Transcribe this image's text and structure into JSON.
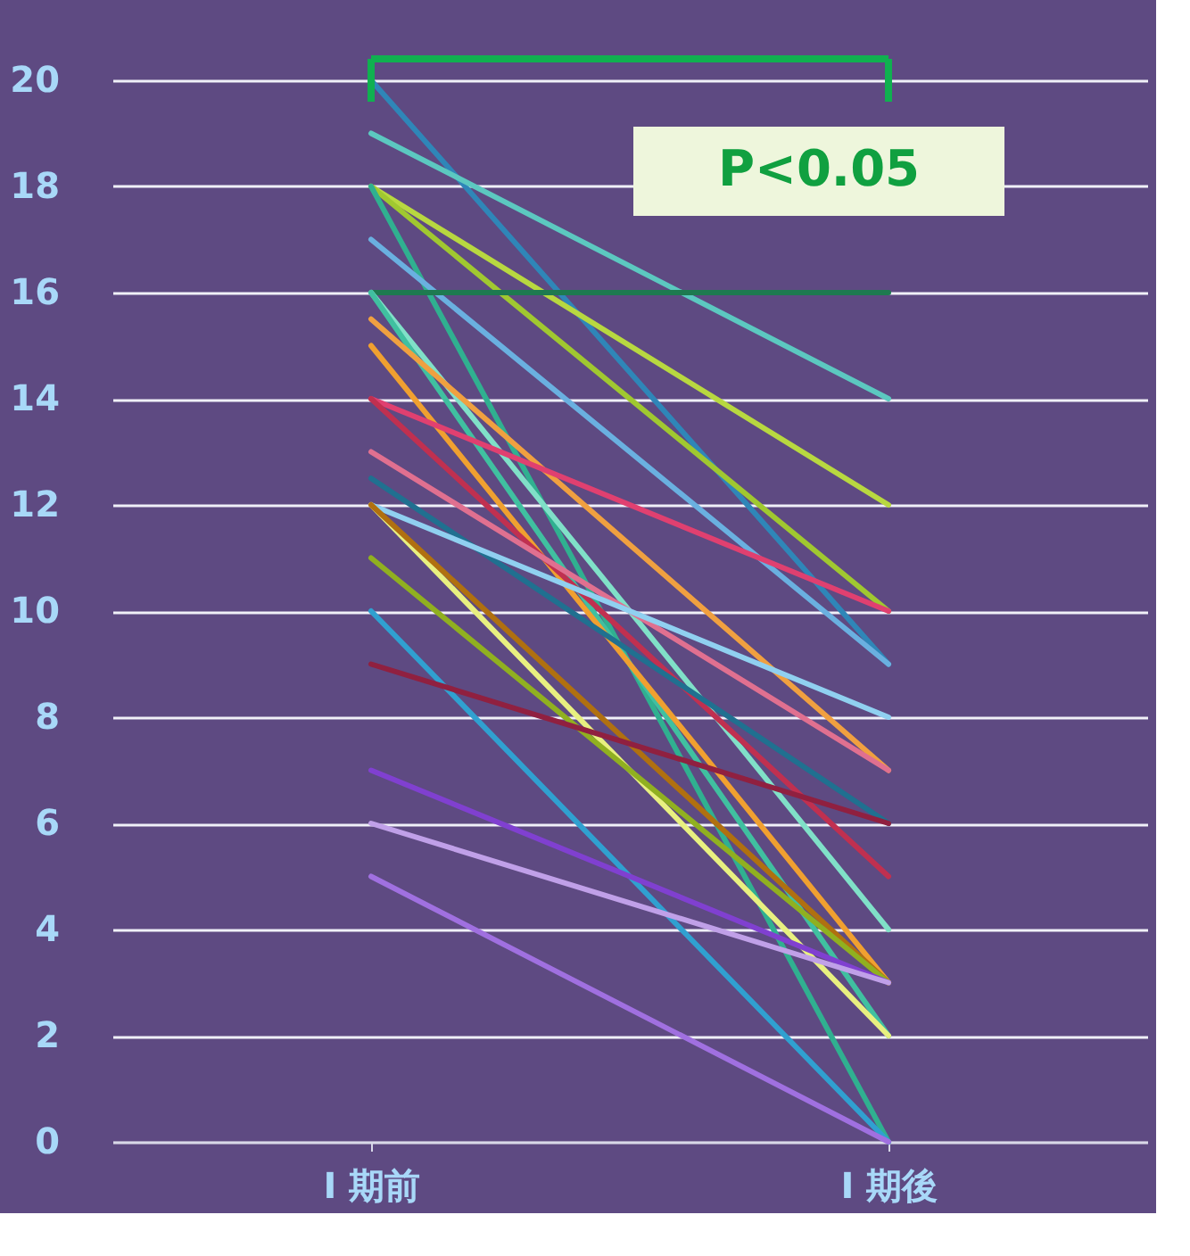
{
  "chart_data": {
    "type": "line",
    "categories": [
      "I 期前",
      "I 期後"
    ],
    "series": [
      {
        "color": "#2f86b8",
        "values": [
          20,
          9
        ]
      },
      {
        "color": "#5cc8c0",
        "values": [
          19,
          14
        ]
      },
      {
        "color": "#b8d840",
        "values": [
          18,
          12
        ]
      },
      {
        "color": "#a0c830",
        "values": [
          18,
          10
        ]
      },
      {
        "color": "#30b090",
        "values": [
          18,
          0
        ]
      },
      {
        "color": "#6ab0e0",
        "values": [
          17,
          9
        ]
      },
      {
        "color": "#1e7a50",
        "values": [
          16,
          16
        ]
      },
      {
        "color": "#80e0c8",
        "values": [
          16,
          4
        ]
      },
      {
        "color": "#40c0a0",
        "values": [
          16,
          2
        ]
      },
      {
        "color": "#f0a040",
        "values": [
          15.5,
          7
        ]
      },
      {
        "color": "#f0a030",
        "values": [
          15,
          3
        ]
      },
      {
        "color": "#e04070",
        "values": [
          14,
          10
        ]
      },
      {
        "color": "#c03050",
        "values": [
          14,
          5
        ]
      },
      {
        "color": "#e07090",
        "values": [
          13,
          7
        ]
      },
      {
        "color": "#207090",
        "values": [
          12.5,
          6
        ]
      },
      {
        "color": "#90d0f0",
        "values": [
          12,
          8
        ]
      },
      {
        "color": "#e8f080",
        "values": [
          12,
          2
        ]
      },
      {
        "color": "#b07010",
        "values": [
          12,
          3
        ]
      },
      {
        "color": "#90b020",
        "values": [
          11,
          3
        ]
      },
      {
        "color": "#30a0d0",
        "values": [
          10,
          0
        ]
      },
      {
        "color": "#902040",
        "values": [
          9,
          6
        ]
      },
      {
        "color": "#8040d0",
        "values": [
          7,
          3
        ]
      },
      {
        "color": "#c0a0e8",
        "values": [
          6,
          3
        ]
      },
      {
        "color": "#a070e0",
        "values": [
          5,
          0
        ]
      }
    ],
    "ylim": [
      0,
      20
    ],
    "yticks": [
      0,
      2,
      4,
      6,
      8,
      10,
      12,
      14,
      16,
      18,
      20
    ],
    "grid": "y",
    "legend": false,
    "annotations": [
      "P<0.05"
    ]
  }
}
